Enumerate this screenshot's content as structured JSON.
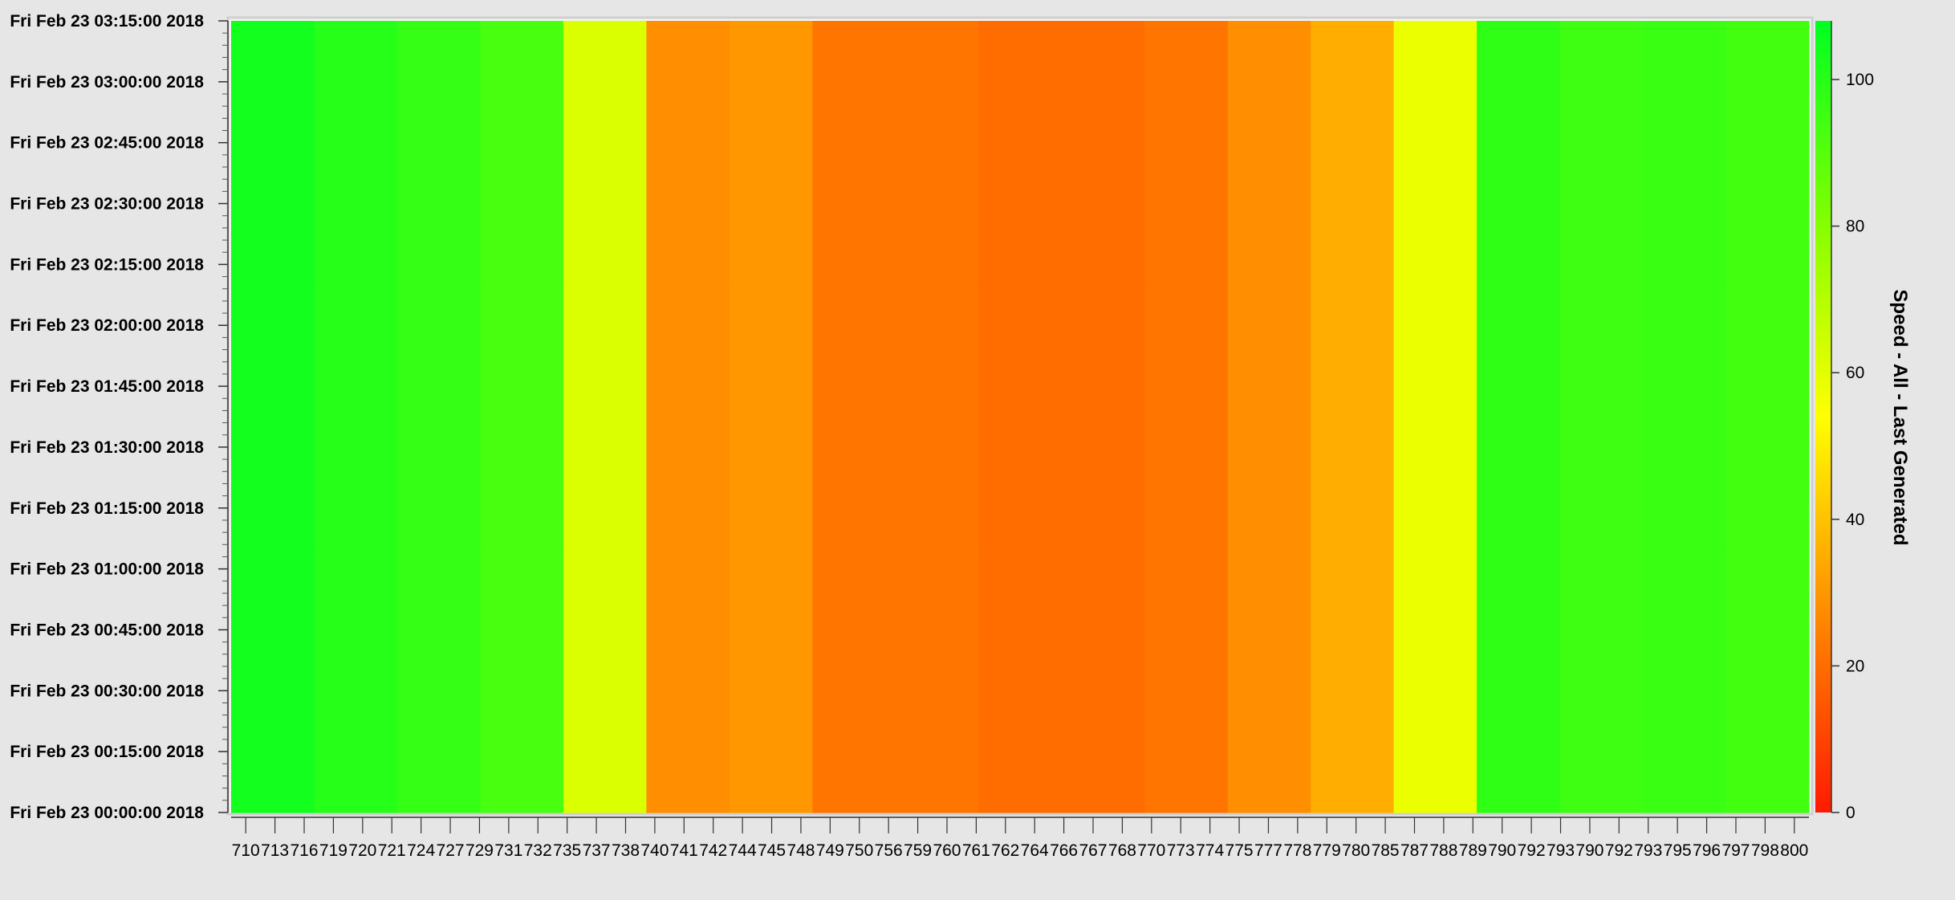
{
  "chart_data": {
    "type": "heatmap",
    "colorbar": {
      "title": "Speed - All - Last Generated",
      "range": [
        0,
        108
      ],
      "ticks": [
        0,
        20,
        40,
        60,
        80,
        100
      ],
      "colors": {
        "low": "#ff1a00",
        "mid_low": "#ff8a00",
        "mid": "#ffff00",
        "mid_high": "#80ff00",
        "high": "#00ff22"
      }
    },
    "y_ticks": [
      "Fri Feb 23 00:00:00 2018",
      "Fri Feb 23 00:15:00 2018",
      "Fri Feb 23 00:30:00 2018",
      "Fri Feb 23 00:45:00 2018",
      "Fri Feb 23 01:00:00 2018",
      "Fri Feb 23 01:15:00 2018",
      "Fri Feb 23 01:30:00 2018",
      "Fri Feb 23 01:45:00 2018",
      "Fri Feb 23 02:00:00 2018",
      "Fri Feb 23 02:15:00 2018",
      "Fri Feb 23 02:30:00 2018",
      "Fri Feb 23 02:45:00 2018",
      "Fri Feb 23 03:00:00 2018",
      "Fri Feb 23 03:15:00 2018"
    ],
    "x_ticks": [
      "710",
      "713",
      "716",
      "719",
      "720",
      "721",
      "724",
      "727",
      "729",
      "731",
      "732",
      "735",
      "737",
      "738",
      "740",
      "741",
      "742",
      "744",
      "745",
      "748",
      "749",
      "750",
      "756",
      "759",
      "760",
      "761",
      "762",
      "764",
      "766",
      "767",
      "768",
      "770",
      "773",
      "774",
      "775",
      "777",
      "778",
      "779",
      "780",
      "785",
      "787",
      "788",
      "789",
      "790",
      "792",
      "793",
      "790",
      "792",
      "793",
      "795",
      "796",
      "797",
      "798",
      "800"
    ],
    "series": [
      {
        "values": [
          104,
          100,
          97,
          93,
          62,
          28,
          30,
          22,
          22,
          20,
          20,
          22,
          28,
          35,
          58,
          98,
          95,
          96,
          94
        ]
      },
      {
        "values": [
          104,
          100,
          97,
          93,
          62,
          28,
          30,
          22,
          22,
          20,
          20,
          22,
          28,
          35,
          58,
          98,
          95,
          96,
          94
        ]
      },
      {
        "values": [
          104,
          100,
          97,
          93,
          62,
          28,
          30,
          22,
          22,
          20,
          20,
          22,
          28,
          35,
          58,
          98,
          95,
          96,
          94
        ]
      }
    ]
  }
}
